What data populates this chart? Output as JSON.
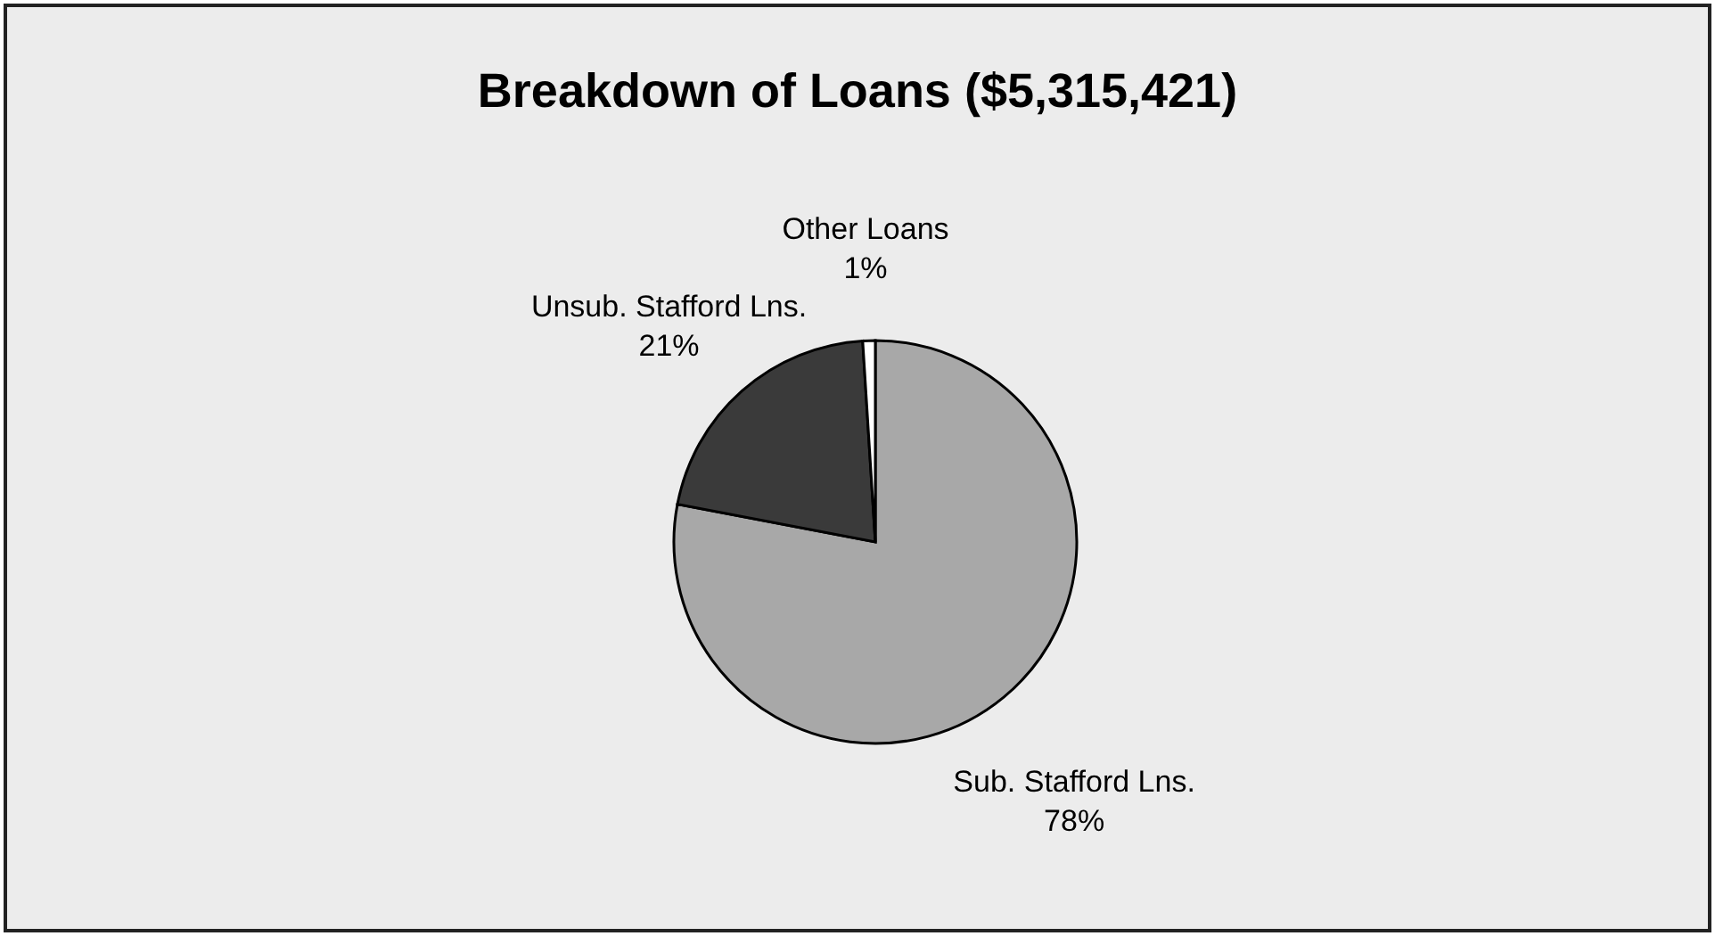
{
  "chart_data": {
    "type": "pie",
    "title": "Breakdown of Loans ($5,315,421)",
    "categories": [
      "Sub. Stafford Lns.",
      "Unsub. Stafford Lns.",
      "Other Loans"
    ],
    "values": [
      78,
      21,
      1
    ],
    "colors": [
      "#a8a8a8",
      "#3a3a3a",
      "#ffffff"
    ],
    "value_labels": [
      "78%",
      "21%",
      "1%"
    ],
    "legend": false
  }
}
